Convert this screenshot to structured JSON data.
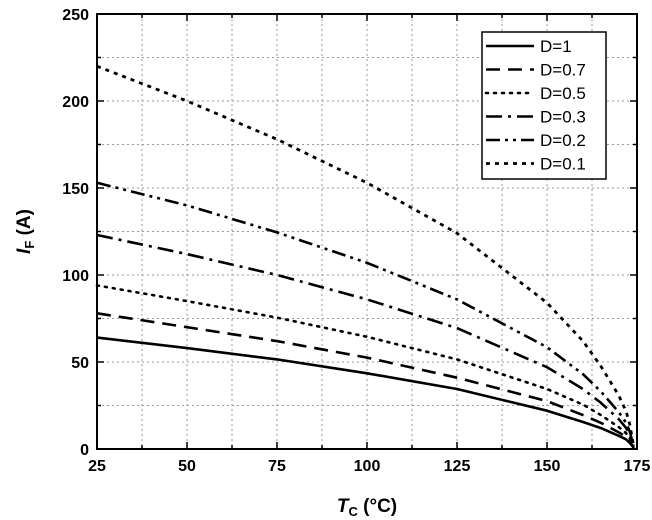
{
  "chart_data": {
    "type": "line",
    "title": "",
    "xlabel": {
      "symbol": "T",
      "subscript": "C",
      "unit": " (°C)"
    },
    "ylabel": {
      "symbol": "I",
      "subscript": "F",
      "unit": " (A)"
    },
    "xlim": [
      25,
      175
    ],
    "ylim": [
      0,
      250
    ],
    "xticks": [
      25,
      50,
      75,
      100,
      125,
      150,
      175
    ],
    "yticks": [
      0,
      50,
      100,
      150,
      200,
      250
    ],
    "grid": true,
    "legend_position": "top-right",
    "series": [
      {
        "name": "D=1",
        "style": "solid",
        "x": [
          25,
          50,
          75,
          100,
          125,
          150,
          160,
          165,
          170,
          172,
          173,
          174
        ],
        "y": [
          64,
          58,
          51.5,
          43.5,
          34.5,
          22,
          15.5,
          12,
          7.5,
          5.5,
          3.5,
          1
        ]
      },
      {
        "name": "D=0.7",
        "style": "dash",
        "x": [
          25,
          50,
          75,
          100,
          125,
          150,
          160,
          165,
          170,
          172,
          173,
          174
        ],
        "y": [
          78,
          70,
          62,
          52.5,
          41,
          27.5,
          19.5,
          15,
          9.5,
          7,
          4.5,
          1
        ]
      },
      {
        "name": "D=0.5",
        "style": "dot",
        "x": [
          25,
          50,
          75,
          100,
          125,
          150,
          160,
          165,
          170,
          172,
          173,
          174
        ],
        "y": [
          94,
          85,
          75.5,
          64.5,
          51.5,
          34.5,
          25.5,
          19.5,
          12.5,
          9,
          6,
          1
        ]
      },
      {
        "name": "D=0.3",
        "style": "dashdot",
        "x": [
          25,
          50,
          75,
          100,
          125,
          150,
          160,
          165,
          170,
          172,
          173,
          174
        ],
        "y": [
          123,
          112,
          100,
          86,
          69.5,
          47,
          34.5,
          26.5,
          17,
          12,
          8,
          1.5
        ]
      },
      {
        "name": "D=0.2",
        "style": "dashdotdot",
        "x": [
          25,
          50,
          75,
          100,
          125,
          150,
          160,
          165,
          170,
          172,
          173,
          174
        ],
        "y": [
          153,
          140,
          124.5,
          107,
          86,
          58.5,
          43,
          33,
          21,
          15,
          10,
          2
        ]
      },
      {
        "name": "D=0.1",
        "style": "shortdot",
        "x": [
          25,
          50,
          75,
          100,
          125,
          150,
          160,
          165,
          170,
          172,
          173,
          174
        ],
        "y": [
          220,
          200,
          178,
          153,
          124,
          84,
          62,
          47.5,
          30.5,
          21.5,
          14,
          2.5
        ]
      }
    ]
  }
}
